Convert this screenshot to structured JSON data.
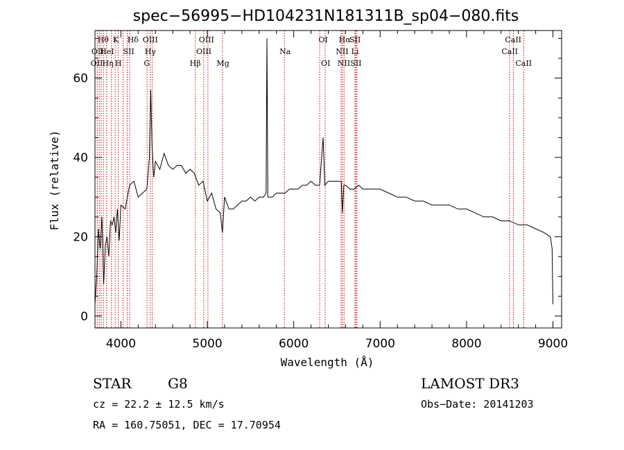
{
  "chart_data": {
    "type": "line",
    "title": "spec−56995−HD104231N181311B_sp04−080.fits",
    "xlabel": "Wavelength (Å)",
    "ylabel": "Flux (relative)",
    "xlim": [
      3700,
      9100
    ],
    "ylim": [
      -3,
      72
    ],
    "xticks": [
      4000,
      5000,
      6000,
      7000,
      8000,
      9000
    ],
    "yticks": [
      0,
      20,
      40,
      60
    ],
    "series": [
      {
        "x": [
          3700,
          3720,
          3740,
          3760,
          3780,
          3800,
          3820,
          3840,
          3860,
          3880,
          3900,
          3920,
          3940,
          3960,
          3980,
          4000,
          4050,
          4100,
          4150,
          4200,
          4250,
          4300,
          4330,
          4345,
          4360,
          4380,
          4400,
          4450,
          4500,
          4550,
          4600,
          4650,
          4700,
          4750,
          4800,
          4850,
          4900,
          4950,
          5000,
          5050,
          5100,
          5150,
          5175,
          5200,
          5250,
          5300,
          5350,
          5400,
          5450,
          5500,
          5550,
          5600,
          5650,
          5680,
          5690,
          5700,
          5750,
          5800,
          5850,
          5900,
          5950,
          6000,
          6050,
          6100,
          6150,
          6200,
          6250,
          6300,
          6340,
          6360,
          6400,
          6450,
          6500,
          6550,
          6563,
          6580,
          6600,
          6650,
          6700,
          6750,
          6800,
          6850,
          6900,
          6950,
          7000,
          7100,
          7200,
          7300,
          7400,
          7500,
          7600,
          7700,
          7800,
          7900,
          8000,
          8100,
          8200,
          8300,
          8400,
          8500,
          8600,
          8700,
          8800,
          8900,
          8970,
          8990,
          9000
        ],
        "y": [
          3,
          10,
          22,
          17,
          25,
          8,
          18,
          20,
          15,
          24,
          23,
          25,
          21,
          27,
          19,
          28,
          27,
          33,
          34,
          30,
          31,
          32,
          40,
          57,
          43,
          35,
          39,
          37,
          41,
          38,
          37,
          38,
          38,
          36,
          37,
          36,
          33,
          34,
          29,
          31,
          27,
          26,
          21,
          30,
          27,
          27,
          28,
          29,
          29,
          30,
          29,
          30,
          30,
          31,
          70,
          30,
          30,
          31,
          31,
          31,
          32,
          32,
          32,
          33,
          33,
          34,
          33,
          33,
          45,
          33,
          34,
          34,
          34,
          34,
          26,
          33,
          33,
          32,
          32,
          33,
          32,
          32,
          32,
          32,
          32,
          31,
          30,
          30,
          29,
          29,
          28,
          28,
          28,
          27,
          27,
          26,
          25,
          25,
          24,
          24,
          23,
          23,
          22,
          21,
          20,
          17,
          3
        ]
      }
    ],
    "lines_top_row1": [
      "Hθ",
      "K",
      "Hδ",
      "OIII",
      "OIII",
      "OI",
      "Hα",
      "SII",
      "CaII"
    ],
    "lines_top_row2": [
      "OII",
      "HeI",
      "SII",
      "Hγ",
      "OIII",
      "Na",
      "NII",
      "Li",
      "CaII"
    ],
    "lines_top_row3": [
      "OII",
      "Hη",
      "H",
      "G",
      "Hβ",
      "Mg",
      "OI",
      "NII",
      "SII",
      "CaII"
    ],
    "marker_wavelengths": [
      3727,
      3750,
      3771,
      3798,
      3835,
      3889,
      3934,
      3968,
      4026,
      4073,
      4102,
      4303,
      4340,
      4363,
      4861,
      4959,
      5007,
      5175,
      5893,
      6300,
      6364,
      6548,
      6563,
      6583,
      6708,
      6717,
      6731,
      8498,
      8542,
      8662
    ],
    "colors": {
      "spectrum": "#000000",
      "marker_lines": "#cc0000",
      "axes": "#000000"
    }
  },
  "info": {
    "object_class": "STAR",
    "subclass": "G8",
    "survey": "LAMOST DR3",
    "cz": "cz = 22.2 ± 12.5 km/s",
    "obs_date": "Obs−Date: 20141203",
    "coords": "RA = 160.75051, DEC =  17.70954"
  }
}
